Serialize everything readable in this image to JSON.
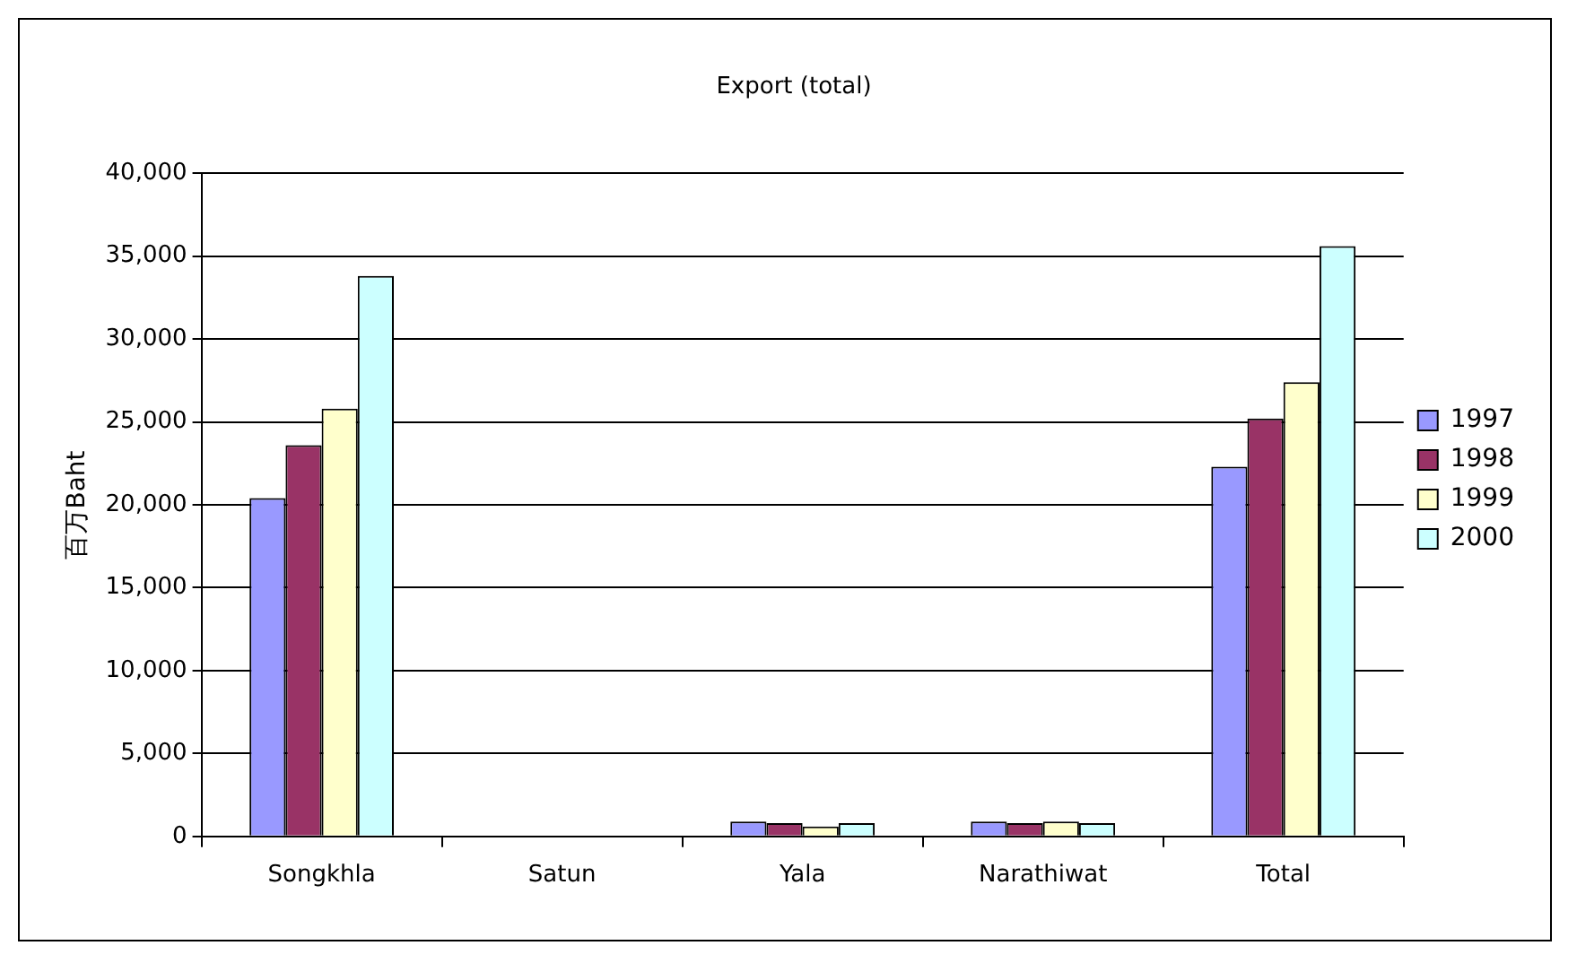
{
  "chart_data": {
    "type": "bar",
    "title": "Export (total)",
    "ylabel": "百万Baht",
    "categories": [
      "Songkhla",
      "Satun",
      "Yala",
      "Narathiwat",
      "Total"
    ],
    "series": [
      {
        "name": "1997",
        "color": "#9999ff",
        "values": [
          20400,
          0,
          900,
          900,
          22300
        ]
      },
      {
        "name": "1998",
        "color": "#993366",
        "values": [
          23600,
          0,
          800,
          800,
          25200
        ]
      },
      {
        "name": "1999",
        "color": "#ffffcc",
        "values": [
          25800,
          0,
          600,
          900,
          27400
        ]
      },
      {
        "name": "2000",
        "color": "#ccffff",
        "values": [
          33800,
          0,
          800,
          800,
          35600
        ]
      }
    ],
    "ylim": [
      0,
      40000
    ],
    "yticks": [
      0,
      {
        "value": 5000,
        "label": "5,000"
      },
      {
        "value": 10000,
        "label": "10,000"
      },
      {
        "value": 15000,
        "label": "15,000"
      },
      {
        "value": 20000,
        "label": "20,000"
      },
      {
        "value": 25000,
        "label": "25,000"
      },
      {
        "value": 30000,
        "label": "30,000"
      },
      {
        "value": 35000,
        "label": "35,000"
      },
      {
        "value": 40000,
        "label": "40,000"
      }
    ],
    "grid": "y",
    "legend": "right"
  }
}
